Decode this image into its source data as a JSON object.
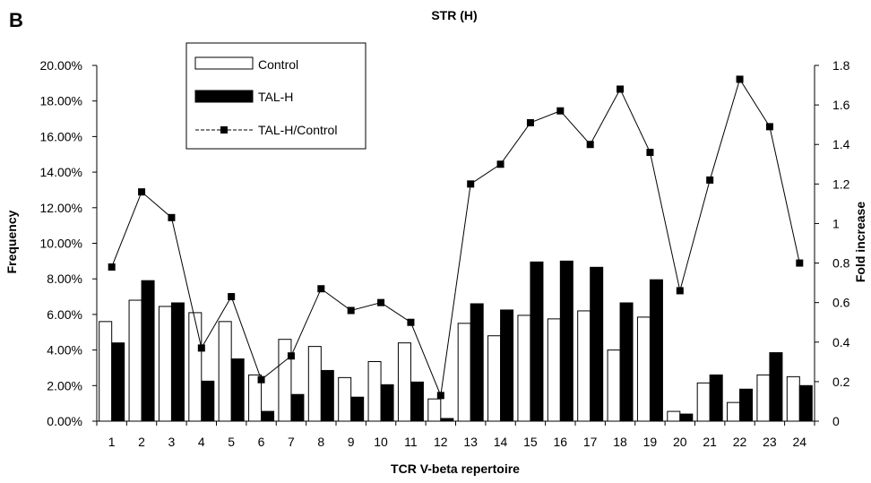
{
  "chart_data": {
    "type": "bar",
    "panel_label": "B",
    "title": "STR (H)",
    "xlabel": "TCR V-beta repertoire",
    "ylabel": "Frequency",
    "y2label": "Fold increase",
    "categories": [
      "1",
      "2",
      "3",
      "4",
      "5",
      "6",
      "7",
      "8",
      "9",
      "10",
      "11",
      "12",
      "13",
      "14",
      "15",
      "16",
      "17",
      "18",
      "19",
      "20",
      "21",
      "22",
      "23",
      "24"
    ],
    "ylim": [
      0,
      20
    ],
    "y_ticks": [
      "0.00%",
      "2.00%",
      "4.00%",
      "6.00%",
      "8.00%",
      "10.00%",
      "12.00%",
      "14.00%",
      "16.00%",
      "18.00%",
      "20.00%"
    ],
    "y2lim": [
      0,
      1.8
    ],
    "y2_ticks": [
      "0",
      "0.2",
      "0.4",
      "0.6",
      "0.8",
      "1",
      "1.2",
      "1.4",
      "1.6",
      "1.8"
    ],
    "series": [
      {
        "name": "Control",
        "kind": "bar",
        "fill": "#ffffff",
        "values": [
          5.6,
          6.8,
          6.45,
          6.1,
          5.6,
          2.6,
          4.6,
          4.2,
          2.45,
          3.35,
          4.4,
          1.25,
          5.5,
          4.8,
          5.95,
          5.75,
          6.2,
          4.0,
          5.85,
          0.55,
          2.15,
          1.05,
          2.6,
          2.5
        ]
      },
      {
        "name": "TAL-H",
        "kind": "bar",
        "fill": "#000000",
        "values": [
          4.4,
          7.9,
          6.65,
          2.25,
          3.5,
          0.55,
          1.5,
          2.85,
          1.35,
          2.05,
          2.2,
          0.15,
          6.6,
          6.25,
          8.95,
          9.0,
          8.65,
          6.65,
          7.95,
          0.4,
          2.6,
          1.8,
          3.85,
          2.0
        ]
      },
      {
        "name": "TAL-H/Control",
        "kind": "line",
        "axis": "right",
        "values": [
          0.78,
          1.16,
          1.03,
          0.37,
          0.63,
          0.21,
          0.33,
          0.67,
          0.56,
          0.6,
          0.5,
          0.13,
          1.2,
          1.3,
          1.51,
          1.57,
          1.4,
          1.68,
          1.36,
          0.66,
          1.22,
          1.73,
          1.49,
          0.8
        ]
      }
    ],
    "legend": "top-left"
  }
}
